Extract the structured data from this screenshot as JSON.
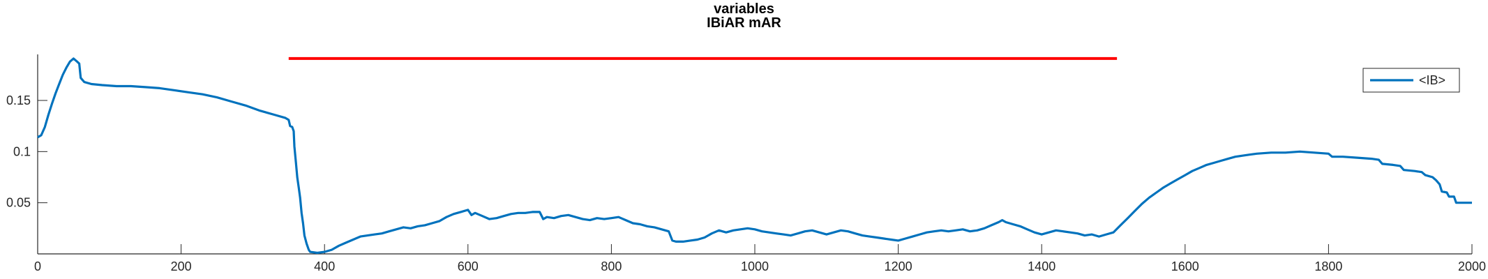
{
  "chart_data": {
    "type": "line",
    "title": [
      "variables",
      "IBiAR mAR"
    ],
    "xlim": [
      0,
      2000
    ],
    "ylim": [
      0,
      0.195
    ],
    "x_ticks": [
      "0",
      "200",
      "400",
      "600",
      "800",
      "1000",
      "1200",
      "1400",
      "1600",
      "1800",
      "2000"
    ],
    "y_ticks": [
      "0.05",
      "0.1",
      "0.15"
    ],
    "y_tick_values": [
      0.05,
      0.1,
      0.15
    ],
    "grid": false,
    "legend": {
      "position": "top-right"
    },
    "series": [
      {
        "name": "<IB>",
        "color": "#0072BD",
        "points": [
          [
            0,
            0.114
          ],
          [
            5,
            0.116
          ],
          [
            10,
            0.124
          ],
          [
            15,
            0.136
          ],
          [
            20,
            0.147
          ],
          [
            25,
            0.157
          ],
          [
            30,
            0.166
          ],
          [
            35,
            0.175
          ],
          [
            40,
            0.182
          ],
          [
            45,
            0.188
          ],
          [
            50,
            0.191
          ],
          [
            55,
            0.188
          ],
          [
            58,
            0.186
          ],
          [
            60,
            0.172
          ],
          [
            65,
            0.168
          ],
          [
            75,
            0.166
          ],
          [
            90,
            0.165
          ],
          [
            110,
            0.164
          ],
          [
            130,
            0.164
          ],
          [
            150,
            0.163
          ],
          [
            170,
            0.162
          ],
          [
            190,
            0.16
          ],
          [
            210,
            0.158
          ],
          [
            230,
            0.156
          ],
          [
            250,
            0.153
          ],
          [
            270,
            0.149
          ],
          [
            290,
            0.145
          ],
          [
            310,
            0.14
          ],
          [
            330,
            0.136
          ],
          [
            345,
            0.133
          ],
          [
            350,
            0.131
          ],
          [
            352,
            0.125
          ],
          [
            355,
            0.124
          ],
          [
            357,
            0.12
          ],
          [
            358,
            0.105
          ],
          [
            360,
            0.09
          ],
          [
            362,
            0.075
          ],
          [
            364,
            0.065
          ],
          [
            366,
            0.055
          ],
          [
            368,
            0.04
          ],
          [
            370,
            0.03
          ],
          [
            372,
            0.018
          ],
          [
            375,
            0.01
          ],
          [
            378,
            0.004
          ],
          [
            380,
            0.002
          ],
          [
            390,
            0.001
          ],
          [
            400,
            0.002
          ],
          [
            410,
            0.004
          ],
          [
            420,
            0.008
          ],
          [
            430,
            0.011
          ],
          [
            440,
            0.014
          ],
          [
            450,
            0.017
          ],
          [
            460,
            0.018
          ],
          [
            470,
            0.019
          ],
          [
            480,
            0.02
          ],
          [
            490,
            0.022
          ],
          [
            500,
            0.024
          ],
          [
            510,
            0.026
          ],
          [
            520,
            0.025
          ],
          [
            530,
            0.027
          ],
          [
            540,
            0.028
          ],
          [
            550,
            0.03
          ],
          [
            560,
            0.032
          ],
          [
            570,
            0.036
          ],
          [
            580,
            0.039
          ],
          [
            590,
            0.041
          ],
          [
            600,
            0.043
          ],
          [
            605,
            0.038
          ],
          [
            610,
            0.04
          ],
          [
            620,
            0.037
          ],
          [
            630,
            0.034
          ],
          [
            640,
            0.035
          ],
          [
            650,
            0.037
          ],
          [
            660,
            0.039
          ],
          [
            670,
            0.04
          ],
          [
            680,
            0.04
          ],
          [
            690,
            0.041
          ],
          [
            700,
            0.041
          ],
          [
            705,
            0.034
          ],
          [
            710,
            0.036
          ],
          [
            720,
            0.035
          ],
          [
            730,
            0.037
          ],
          [
            740,
            0.038
          ],
          [
            750,
            0.036
          ],
          [
            760,
            0.034
          ],
          [
            770,
            0.033
          ],
          [
            780,
            0.035
          ],
          [
            790,
            0.034
          ],
          [
            800,
            0.035
          ],
          [
            810,
            0.036
          ],
          [
            820,
            0.033
          ],
          [
            830,
            0.03
          ],
          [
            840,
            0.029
          ],
          [
            850,
            0.027
          ],
          [
            860,
            0.026
          ],
          [
            870,
            0.024
          ],
          [
            880,
            0.022
          ],
          [
            885,
            0.013
          ],
          [
            890,
            0.012
          ],
          [
            900,
            0.012
          ],
          [
            910,
            0.013
          ],
          [
            920,
            0.014
          ],
          [
            930,
            0.016
          ],
          [
            940,
            0.02
          ],
          [
            950,
            0.023
          ],
          [
            960,
            0.021
          ],
          [
            970,
            0.023
          ],
          [
            980,
            0.024
          ],
          [
            990,
            0.025
          ],
          [
            1000,
            0.024
          ],
          [
            1010,
            0.022
          ],
          [
            1020,
            0.021
          ],
          [
            1030,
            0.02
          ],
          [
            1040,
            0.019
          ],
          [
            1050,
            0.018
          ],
          [
            1060,
            0.02
          ],
          [
            1070,
            0.022
          ],
          [
            1080,
            0.023
          ],
          [
            1090,
            0.021
          ],
          [
            1100,
            0.019
          ],
          [
            1110,
            0.021
          ],
          [
            1120,
            0.023
          ],
          [
            1130,
            0.022
          ],
          [
            1140,
            0.02
          ],
          [
            1150,
            0.018
          ],
          [
            1160,
            0.017
          ],
          [
            1170,
            0.016
          ],
          [
            1180,
            0.015
          ],
          [
            1190,
            0.014
          ],
          [
            1200,
            0.013
          ],
          [
            1210,
            0.015
          ],
          [
            1220,
            0.017
          ],
          [
            1230,
            0.019
          ],
          [
            1240,
            0.021
          ],
          [
            1250,
            0.022
          ],
          [
            1260,
            0.023
          ],
          [
            1270,
            0.022
          ],
          [
            1280,
            0.023
          ],
          [
            1290,
            0.024
          ],
          [
            1300,
            0.022
          ],
          [
            1310,
            0.023
          ],
          [
            1320,
            0.025
          ],
          [
            1330,
            0.028
          ],
          [
            1340,
            0.031
          ],
          [
            1345,
            0.033
          ],
          [
            1350,
            0.031
          ],
          [
            1360,
            0.029
          ],
          [
            1370,
            0.027
          ],
          [
            1380,
            0.024
          ],
          [
            1390,
            0.021
          ],
          [
            1400,
            0.019
          ],
          [
            1410,
            0.021
          ],
          [
            1420,
            0.023
          ],
          [
            1430,
            0.022
          ],
          [
            1440,
            0.021
          ],
          [
            1450,
            0.02
          ],
          [
            1460,
            0.018
          ],
          [
            1470,
            0.019
          ],
          [
            1480,
            0.017
          ],
          [
            1490,
            0.019
          ],
          [
            1500,
            0.021
          ],
          [
            1510,
            0.028
          ],
          [
            1520,
            0.035
          ],
          [
            1530,
            0.042
          ],
          [
            1540,
            0.049
          ],
          [
            1550,
            0.055
          ],
          [
            1560,
            0.06
          ],
          [
            1570,
            0.065
          ],
          [
            1580,
            0.069
          ],
          [
            1590,
            0.073
          ],
          [
            1600,
            0.077
          ],
          [
            1610,
            0.081
          ],
          [
            1620,
            0.084
          ],
          [
            1630,
            0.087
          ],
          [
            1640,
            0.089
          ],
          [
            1650,
            0.091
          ],
          [
            1660,
            0.093
          ],
          [
            1670,
            0.095
          ],
          [
            1680,
            0.096
          ],
          [
            1690,
            0.097
          ],
          [
            1700,
            0.098
          ],
          [
            1720,
            0.099
          ],
          [
            1740,
            0.099
          ],
          [
            1760,
            0.1
          ],
          [
            1780,
            0.099
          ],
          [
            1800,
            0.098
          ],
          [
            1805,
            0.095
          ],
          [
            1820,
            0.095
          ],
          [
            1840,
            0.094
          ],
          [
            1860,
            0.093
          ],
          [
            1870,
            0.092
          ],
          [
            1875,
            0.088
          ],
          [
            1890,
            0.087
          ],
          [
            1900,
            0.086
          ],
          [
            1905,
            0.082
          ],
          [
            1920,
            0.081
          ],
          [
            1930,
            0.08
          ],
          [
            1935,
            0.077
          ],
          [
            1945,
            0.075
          ],
          [
            1950,
            0.072
          ],
          [
            1955,
            0.068
          ],
          [
            1958,
            0.061
          ],
          [
            1965,
            0.06
          ],
          [
            1968,
            0.056
          ],
          [
            1975,
            0.056
          ],
          [
            1978,
            0.05
          ],
          [
            1985,
            0.05
          ],
          [
            1990,
            0.05
          ],
          [
            2000,
            0.05
          ]
        ]
      }
    ],
    "red_bar": {
      "x": [
        350,
        1505
      ],
      "y": 0.191,
      "color": "#FF0000"
    }
  }
}
